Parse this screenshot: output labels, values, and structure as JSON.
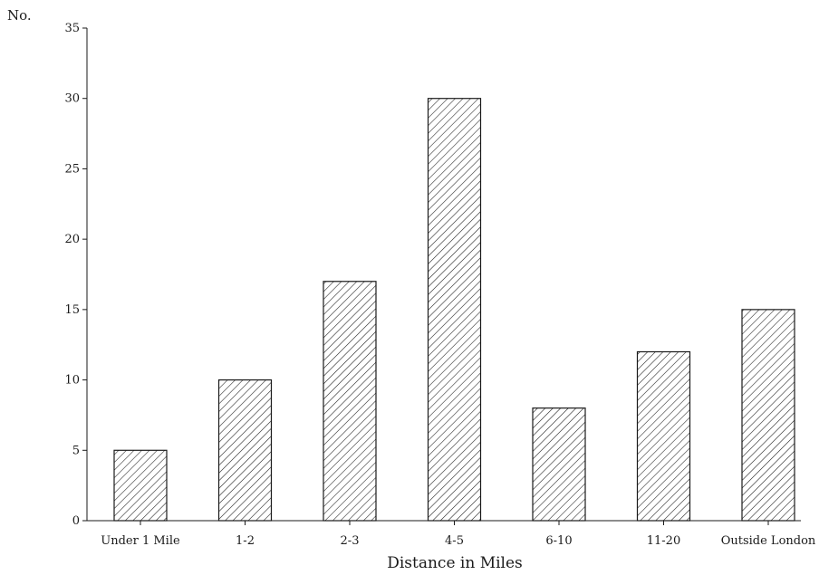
{
  "chart_data": {
    "type": "bar",
    "title": "",
    "xlabel": "Distance in Miles",
    "ylabel": "No.",
    "categories": [
      "Under 1 Mile",
      "1-2",
      "2-3",
      "4-5",
      "6-10",
      "11-20",
      "Outside London"
    ],
    "values": [
      5,
      10,
      17,
      30,
      8,
      12,
      15
    ],
    "ylim": [
      0,
      35
    ],
    "yticks": [
      "0",
      "5",
      "10",
      "15",
      "20",
      "25",
      "30",
      "35"
    ],
    "grid": false,
    "legend": "none",
    "bar_fill": "hatched",
    "colors": {
      "bar_stroke": "#1a1a1a",
      "hatch": "#1a1a1a",
      "axis": "#1a1a1a"
    }
  }
}
